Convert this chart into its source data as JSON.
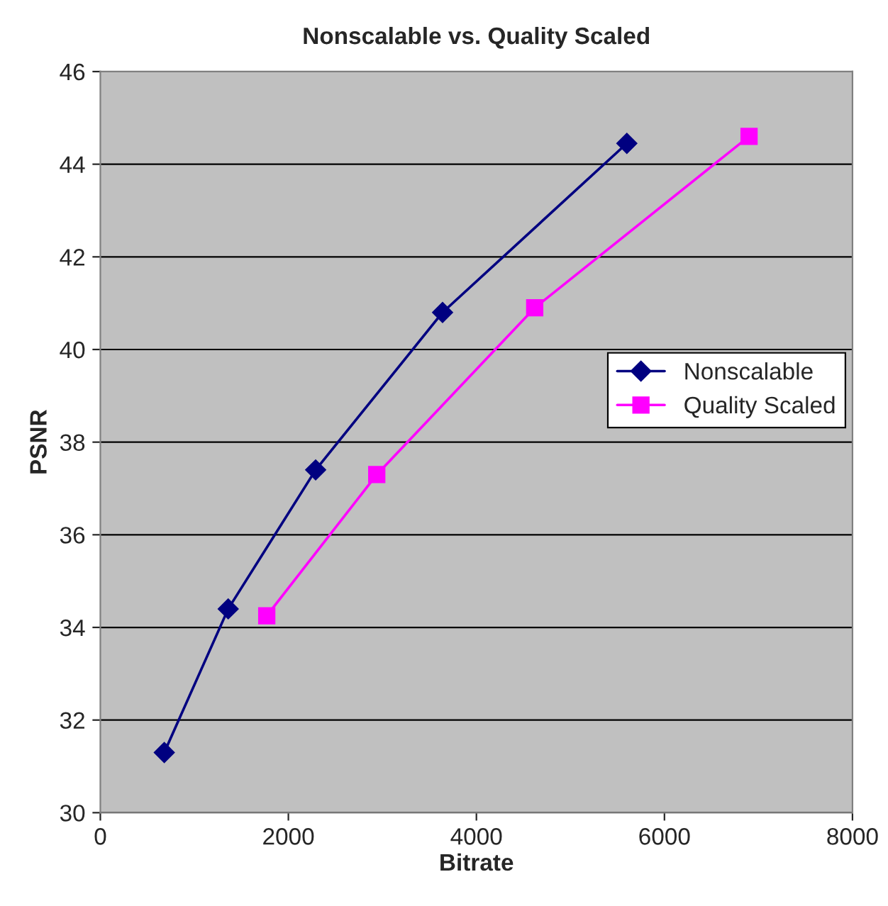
{
  "chart_data": {
    "type": "line",
    "title": "Nonscalable vs. Quality Scaled",
    "xlabel": "Bitrate",
    "ylabel": "PSNR",
    "xlim": [
      0,
      8000
    ],
    "xticks": [
      0,
      2000,
      4000,
      6000,
      8000
    ],
    "ylim": [
      30,
      46
    ],
    "yticks": [
      30,
      32,
      34,
      36,
      38,
      40,
      42,
      44,
      46
    ],
    "grid": "y",
    "legend": "right",
    "series": [
      {
        "name": "Nonscalable",
        "color": "#000080",
        "marker": "diamond",
        "x": [
          680,
          1360,
          2290,
          3640,
          5600
        ],
        "values": [
          31.3,
          34.4,
          37.4,
          40.8,
          44.45
        ]
      },
      {
        "name": "Quality Scaled",
        "color": "#ff00ff",
        "marker": "square",
        "x": [
          1770,
          2940,
          4620,
          6900
        ],
        "values": [
          34.25,
          37.3,
          40.9,
          44.6
        ]
      }
    ]
  }
}
